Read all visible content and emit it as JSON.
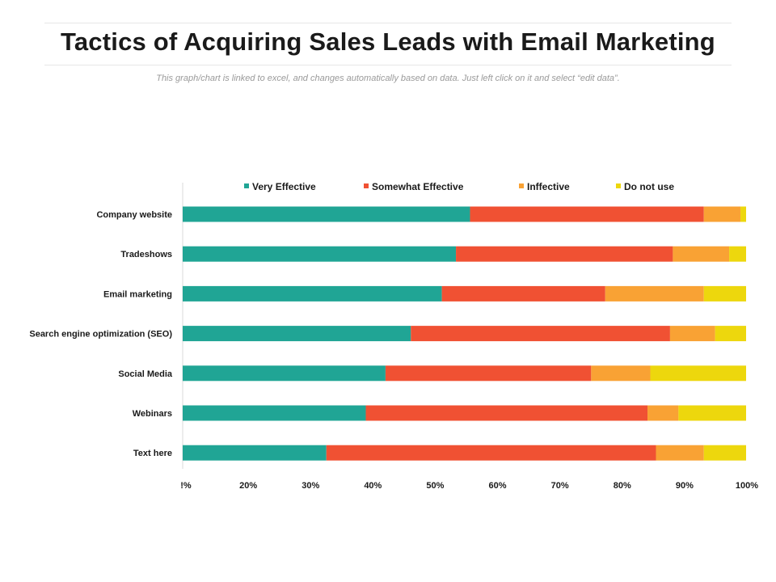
{
  "header": {
    "title": "Tactics of Acquiring Sales Leads with Email Marketing",
    "subtitle": "This graph/chart is linked to excel, and changes automatically based on data. Just left click on it and select “edit data”."
  },
  "chart_data": {
    "type": "bar",
    "orientation": "horizontal",
    "stacked": "percent",
    "categories": [
      "Company website",
      "Tradeshows",
      "Email marketing",
      "Search engine optimization (SEO)",
      "Social Media",
      "Webinars",
      "Text here"
    ],
    "series": [
      {
        "name": "Very Effective",
        "color": "#20a595",
        "values": [
          51,
          48.5,
          46,
          40.5,
          36,
          32.5,
          25.5
        ]
      },
      {
        "name": "Somewhat Effective",
        "color": "#f05133",
        "values": [
          41.5,
          38.5,
          29,
          46,
          36.5,
          50,
          58.5
        ]
      },
      {
        "name": "Inffective",
        "color": "#f9a234",
        "values": [
          6.5,
          10,
          17.5,
          8,
          10.5,
          5.5,
          8.5
        ]
      },
      {
        "name": "Do not use",
        "color": "#edd70d",
        "values": [
          1,
          3,
          7.5,
          5.5,
          17,
          12,
          7.5
        ]
      }
    ],
    "x_tick_labels": [
      "!%",
      "20%",
      "30%",
      "40%",
      "50%",
      "60%",
      "70%",
      "80%",
      "90%",
      "100%"
    ],
    "xlim": [
      10,
      100
    ],
    "grid": false,
    "legend_position": "top"
  }
}
